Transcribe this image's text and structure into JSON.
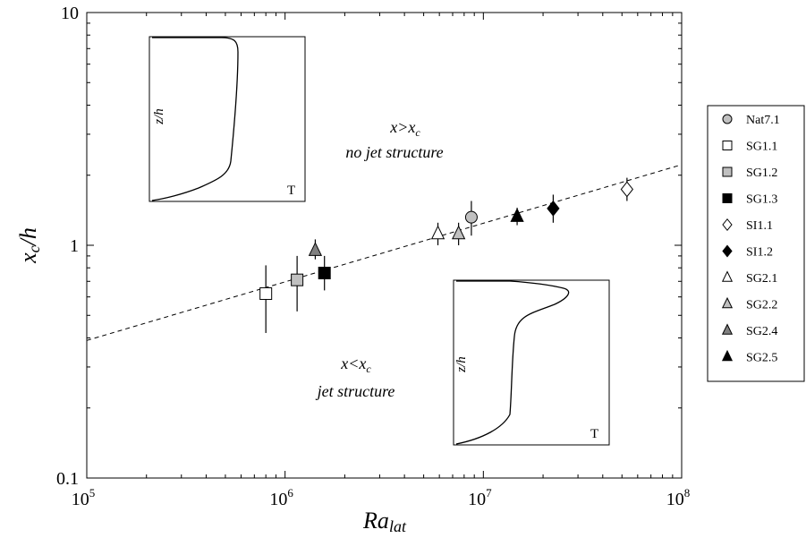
{
  "chart_data": {
    "type": "scatter",
    "xlabel": "Ra",
    "xlabel_sub": "lat",
    "ylabel": "x",
    "ylabel_sub": "c",
    "ylabel_suffix": "/h",
    "x_scale": "log",
    "y_scale": "log",
    "xlim": [
      100000,
      100000000
    ],
    "ylim": [
      0.1,
      10
    ],
    "x_ticks": [
      {
        "value": 100000,
        "base": "10",
        "exp": "5"
      },
      {
        "value": 1000000,
        "base": "10",
        "exp": "6"
      },
      {
        "value": 10000000,
        "base": "10",
        "exp": "7"
      },
      {
        "value": 100000000,
        "base": "10",
        "exp": "8"
      }
    ],
    "y_ticks": [
      {
        "value": 0.1,
        "label": "0.1"
      },
      {
        "value": 1,
        "label": "1"
      },
      {
        "value": 10,
        "label": "10"
      }
    ],
    "grid": false,
    "legend_position": "right",
    "series": [
      {
        "name": "Nat7.1",
        "marker": "circle",
        "fill": "#c0c0c0",
        "x": 8700000,
        "y": 1.32,
        "ylo": 1.1,
        "yhi": 1.55
      },
      {
        "name": "SG1.1",
        "marker": "square",
        "fill": "#ffffff",
        "x": 800000,
        "y": 0.62,
        "ylo": 0.42,
        "yhi": 0.82
      },
      {
        "name": "SG1.2",
        "marker": "square",
        "fill": "#c0c0c0",
        "x": 1150000,
        "y": 0.71,
        "ylo": 0.52,
        "yhi": 0.9
      },
      {
        "name": "SG1.3",
        "marker": "square",
        "fill": "#000000",
        "x": 1580000,
        "y": 0.76,
        "ylo": 0.64,
        "yhi": 0.9
      },
      {
        "name": "SI1.1",
        "marker": "diamond",
        "fill": "#ffffff",
        "x": 53000000,
        "y": 1.74,
        "ylo": 1.55,
        "yhi": 1.95
      },
      {
        "name": "SI1.2",
        "marker": "diamond",
        "fill": "#000000",
        "x": 22500000,
        "y": 1.44,
        "ylo": 1.25,
        "yhi": 1.65
      },
      {
        "name": "SG2.1",
        "marker": "triangle",
        "fill": "#ffffff",
        "x": 5900000,
        "y": 1.12,
        "ylo": 1.0,
        "yhi": 1.25
      },
      {
        "name": "SG2.2",
        "marker": "triangle",
        "fill": "#c0c0c0",
        "x": 7500000,
        "y": 1.12,
        "ylo": 1.0,
        "yhi": 1.25
      },
      {
        "name": "SG2.4",
        "marker": "triangle",
        "fill": "#808080",
        "x": 1420000,
        "y": 0.95,
        "ylo": 0.87,
        "yhi": 1.06
      },
      {
        "name": "SG2.5",
        "marker": "triangle",
        "fill": "#000000",
        "x": 14800000,
        "y": 1.33,
        "ylo": 1.22,
        "yhi": 1.45
      }
    ],
    "fit_line": {
      "style": "dashed",
      "points": [
        [
          100000,
          0.39
        ],
        [
          100000000,
          2.22
        ]
      ]
    },
    "annotations": {
      "upper": {
        "line1_a": "x",
        "line1_b": ">",
        "line1_c": "x",
        "line1_sub": "c",
        "line2": "no jet structure"
      },
      "lower": {
        "line1_a": "x",
        "line1_b": "<",
        "line1_c": "x",
        "line1_sub": "c",
        "line2": "jet structure"
      }
    },
    "insets": [
      {
        "ylabel": "z/h",
        "xlabel": "T",
        "profile": "upper"
      },
      {
        "ylabel": "z/h",
        "xlabel": "T",
        "profile": "lower"
      }
    ]
  }
}
